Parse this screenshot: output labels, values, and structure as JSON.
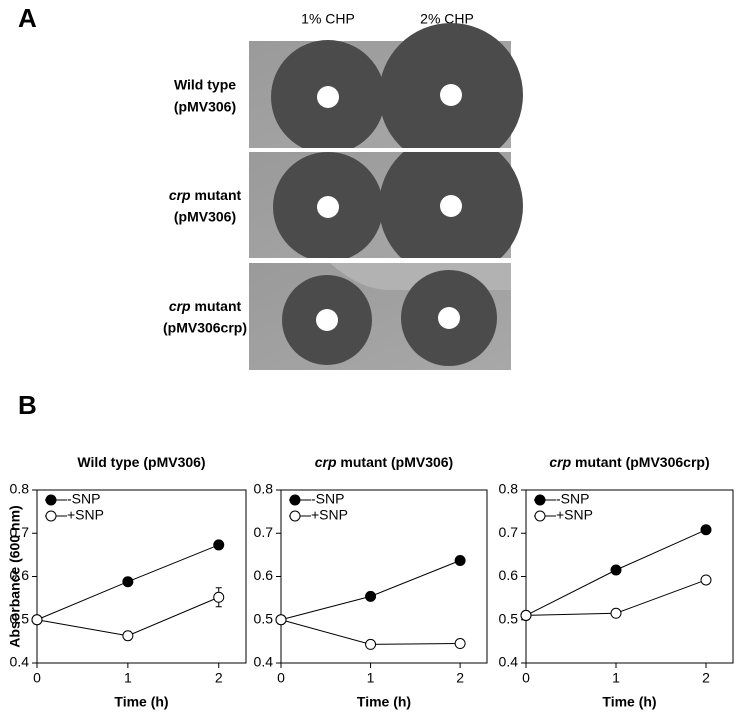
{
  "panel_a": {
    "label": "A",
    "columns": [
      "1% CHP",
      "2% CHP"
    ],
    "rows": [
      {
        "name": "Wild type",
        "strain": "(pMV306)"
      },
      {
        "name_italic": "crp",
        "name": " mutant",
        "strain": "(pMV306)"
      },
      {
        "name_italic": "crp",
        "name": " mutant",
        "strain": "(pMV306crp)"
      }
    ]
  },
  "panel_b": {
    "label": "B"
  },
  "chart_data": [
    {
      "type": "line",
      "title": "Wild type (pMV306)",
      "y_label": "Absorbance (600 nm)",
      "x_label": "Time (h)",
      "x": [
        0,
        1,
        2
      ],
      "xlim": [
        0,
        2.3
      ],
      "xticks": [
        0,
        1,
        2
      ],
      "ylim": [
        0.4,
        0.8
      ],
      "yticks": [
        0.4,
        0.5,
        0.6,
        0.7,
        0.8
      ],
      "legend": "upper left",
      "series": [
        {
          "name": "-SNP",
          "color": "#000000",
          "marker": "filled",
          "values": [
            0.5,
            0.588,
            0.673
          ]
        },
        {
          "name": "+SNP",
          "color": "#000000",
          "marker": "open",
          "values": [
            0.5,
            0.463,
            0.552
          ],
          "errors": [
            null,
            0.01,
            0.022
          ]
        }
      ]
    },
    {
      "type": "line",
      "title_italic": "crp",
      "title": " mutant (pMV306)",
      "x_label": "Time (h)",
      "x": [
        0,
        1,
        2
      ],
      "xlim": [
        0,
        2.3
      ],
      "xticks": [
        0,
        1,
        2
      ],
      "ylim": [
        0.4,
        0.8
      ],
      "yticks": [
        0.4,
        0.5,
        0.6,
        0.7,
        0.8
      ],
      "legend": "upper left",
      "series": [
        {
          "name": "-SNP",
          "color": "#000000",
          "marker": "filled",
          "values": [
            0.5,
            0.554,
            0.637
          ]
        },
        {
          "name": "+SNP",
          "color": "#000000",
          "marker": "open",
          "values": [
            0.5,
            0.443,
            0.445
          ]
        }
      ]
    },
    {
      "type": "line",
      "title_italic": "crp",
      "title": " mutant (pMV306crp)",
      "x_label": "Time (h)",
      "x": [
        0,
        1,
        2
      ],
      "xlim": [
        0,
        2.3
      ],
      "xticks": [
        0,
        1,
        2
      ],
      "ylim": [
        0.4,
        0.8
      ],
      "yticks": [
        0.4,
        0.5,
        0.6,
        0.7,
        0.8
      ],
      "legend": "upper left",
      "series": [
        {
          "name": "-SNP",
          "color": "#000000",
          "marker": "filled",
          "values": [
            0.51,
            0.615,
            0.708
          ]
        },
        {
          "name": "+SNP",
          "color": "#000000",
          "marker": "open",
          "values": [
            0.51,
            0.515,
            0.592
          ],
          "errors": [
            null,
            null,
            0.008
          ]
        }
      ]
    }
  ]
}
